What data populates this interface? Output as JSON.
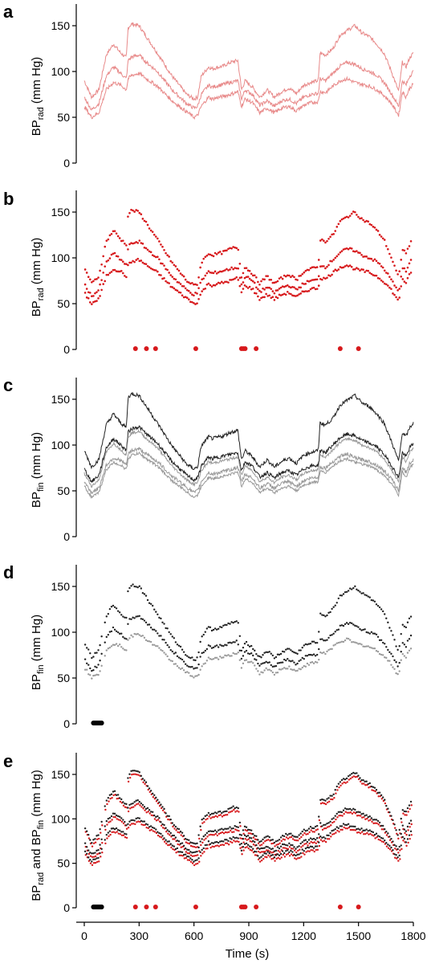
{
  "colors": {
    "radial": "#d7191c",
    "radial_line": "#e88a8a",
    "finger_dark": "#222222",
    "finger_light": "#999999",
    "event_black": "#000000"
  },
  "chart_data": [
    {
      "panel": "a",
      "type": "line",
      "ylabel": "BPrad (mm Hg)",
      "ylabel_main": "BP",
      "ylabel_sub": "rad",
      "ylabel_rest": " (mm Hg)",
      "ylim": [
        0,
        175
      ],
      "yticks": [
        "0",
        "50",
        "100",
        "150"
      ],
      "xlim": [
        0,
        1800
      ],
      "series": [
        {
          "role": "systolic",
          "x": [
            0,
            40,
            80,
            120,
            160,
            200,
            230,
            240,
            260,
            300,
            340,
            400,
            480,
            560,
            600,
            620,
            640,
            680,
            700,
            760,
            800,
            840,
            860,
            880,
            920,
            960,
            1000,
            1040,
            1080,
            1120,
            1160,
            1200,
            1240,
            1280,
            1290,
            1320,
            1360,
            1400,
            1440,
            1480,
            1520,
            1560,
            1600,
            1640,
            1680,
            1720,
            1740,
            1760,
            1780,
            1800
          ],
          "y": [
            90,
            72,
            80,
            118,
            130,
            120,
            115,
            148,
            152,
            150,
            138,
            120,
            95,
            75,
            70,
            72,
            95,
            105,
            103,
            106,
            110,
            112,
            80,
            90,
            83,
            72,
            80,
            72,
            78,
            82,
            76,
            85,
            88,
            90,
            120,
            118,
            125,
            140,
            145,
            150,
            142,
            138,
            130,
            120,
            100,
            78,
            110,
            105,
            115,
            120
          ]
        },
        {
          "role": "mean",
          "x": [
            0,
            40,
            80,
            120,
            160,
            200,
            230,
            240,
            260,
            300,
            340,
            400,
            480,
            560,
            600,
            620,
            640,
            680,
            700,
            760,
            800,
            840,
            860,
            880,
            920,
            960,
            1000,
            1040,
            1080,
            1120,
            1160,
            1200,
            1240,
            1280,
            1290,
            1320,
            1360,
            1400,
            1440,
            1480,
            1520,
            1560,
            1600,
            1640,
            1680,
            1720,
            1740,
            1760,
            1780,
            1800
          ],
          "y": [
            72,
            58,
            65,
            95,
            105,
            98,
            92,
            112,
            116,
            118,
            110,
            100,
            80,
            65,
            60,
            62,
            75,
            85,
            83,
            86,
            88,
            90,
            70,
            80,
            75,
            63,
            68,
            62,
            68,
            70,
            65,
            72,
            75,
            76,
            92,
            90,
            98,
            106,
            110,
            108,
            103,
            100,
            96,
            88,
            76,
            62,
            90,
            85,
            95,
            100
          ]
        },
        {
          "role": "diastolic",
          "x": [
            0,
            40,
            80,
            120,
            160,
            200,
            230,
            240,
            260,
            300,
            340,
            400,
            480,
            560,
            600,
            620,
            640,
            680,
            700,
            760,
            800,
            840,
            860,
            880,
            920,
            960,
            1000,
            1040,
            1080,
            1120,
            1160,
            1200,
            1240,
            1280,
            1290,
            1320,
            1360,
            1400,
            1440,
            1480,
            1520,
            1560,
            1600,
            1640,
            1680,
            1720,
            1740,
            1760,
            1780,
            1800
          ],
          "y": [
            62,
            50,
            55,
            80,
            88,
            85,
            80,
            92,
            96,
            98,
            92,
            84,
            68,
            56,
            50,
            52,
            62,
            72,
            70,
            73,
            75,
            78,
            62,
            70,
            66,
            55,
            60,
            55,
            60,
            62,
            57,
            63,
            66,
            67,
            78,
            77,
            84,
            90,
            92,
            88,
            86,
            84,
            80,
            74,
            65,
            52,
            78,
            72,
            82,
            86
          ]
        }
      ]
    },
    {
      "panel": "b",
      "type": "scatter",
      "ylabel": "BPrad (mm Hg)",
      "ylabel_main": "BP",
      "ylabel_sub": "rad",
      "ylabel_rest": " (mm Hg)",
      "ylim": [
        0,
        175
      ],
      "yticks": [
        "0",
        "50",
        "100",
        "150"
      ],
      "xlim": [
        0,
        1800
      ],
      "events_red": [
        280,
        340,
        390,
        610,
        860,
        870,
        880,
        940,
        1400,
        1500
      ]
    },
    {
      "panel": "c",
      "type": "line",
      "ylabel": "BPfin (mm Hg)",
      "ylabel_main": "BP",
      "ylabel_sub": "fin",
      "ylabel_rest": " (mm Hg)",
      "ylim": [
        0,
        175
      ],
      "yticks": [
        "0",
        "50",
        "100",
        "150"
      ],
      "xlim": [
        0,
        1800
      ]
    },
    {
      "panel": "d",
      "type": "scatter",
      "ylabel": "BPfin (mm Hg)",
      "ylabel_main": "BP",
      "ylabel_sub": "fin",
      "ylabel_rest": " (mm Hg)",
      "ylim": [
        0,
        175
      ],
      "yticks": [
        "0",
        "50",
        "100",
        "150"
      ],
      "xlim": [
        0,
        1800
      ],
      "events_black": [
        50,
        55,
        60,
        65,
        70,
        75,
        80,
        85,
        90,
        95
      ]
    },
    {
      "panel": "e",
      "type": "scatter",
      "ylabel": "BPrad and BPfin (mm Hg)",
      "ylabel_main": "BP",
      "ylabel_sub": "rad",
      "ylabel_mid": " and BP",
      "ylabel_sub2": "fin",
      "ylabel_rest": " (mm Hg)",
      "ylim": [
        0,
        175
      ],
      "yticks": [
        "0",
        "50",
        "100",
        "150"
      ],
      "xlim": [
        0,
        1800
      ],
      "xticks": [
        "0",
        "300",
        "600",
        "900",
        "1200",
        "1500",
        "1800"
      ],
      "xlabel": "Time (s)",
      "events_black": [
        50,
        55,
        60,
        65,
        70,
        75,
        80,
        85,
        90,
        95
      ],
      "events_red": [
        280,
        340,
        390,
        610,
        860,
        870,
        880,
        940,
        1400,
        1500
      ]
    }
  ]
}
